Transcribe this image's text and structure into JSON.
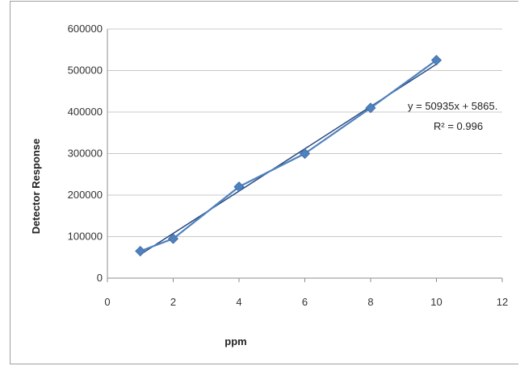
{
  "chart_data": {
    "type": "scatter",
    "title": "",
    "xlabel": "ppm",
    "ylabel": "Detector Response",
    "xlim": [
      0,
      12
    ],
    "ylim": [
      0,
      600000
    ],
    "xticks": [
      "0",
      "2",
      "4",
      "6",
      "8",
      "10",
      "12"
    ],
    "yticks": [
      "0",
      "100000",
      "200000",
      "300000",
      "400000",
      "500000",
      "600000"
    ],
    "grid": "horizontal",
    "series": [
      {
        "x": [
          1,
          2,
          4,
          6,
          8,
          10
        ],
        "y": [
          65000,
          95000,
          220000,
          300000,
          410000,
          525000
        ],
        "color": "#4f81bd",
        "marker": "diamond",
        "connected": true
      }
    ],
    "trendline": {
      "type": "linear",
      "slope": 50935,
      "intercept": 5865,
      "x_range": [
        1,
        10
      ],
      "color": "#2b4a7f"
    },
    "annotations": {
      "equation": "y = 50935x + 5865.",
      "r_squared": "R² = 0.996"
    }
  }
}
